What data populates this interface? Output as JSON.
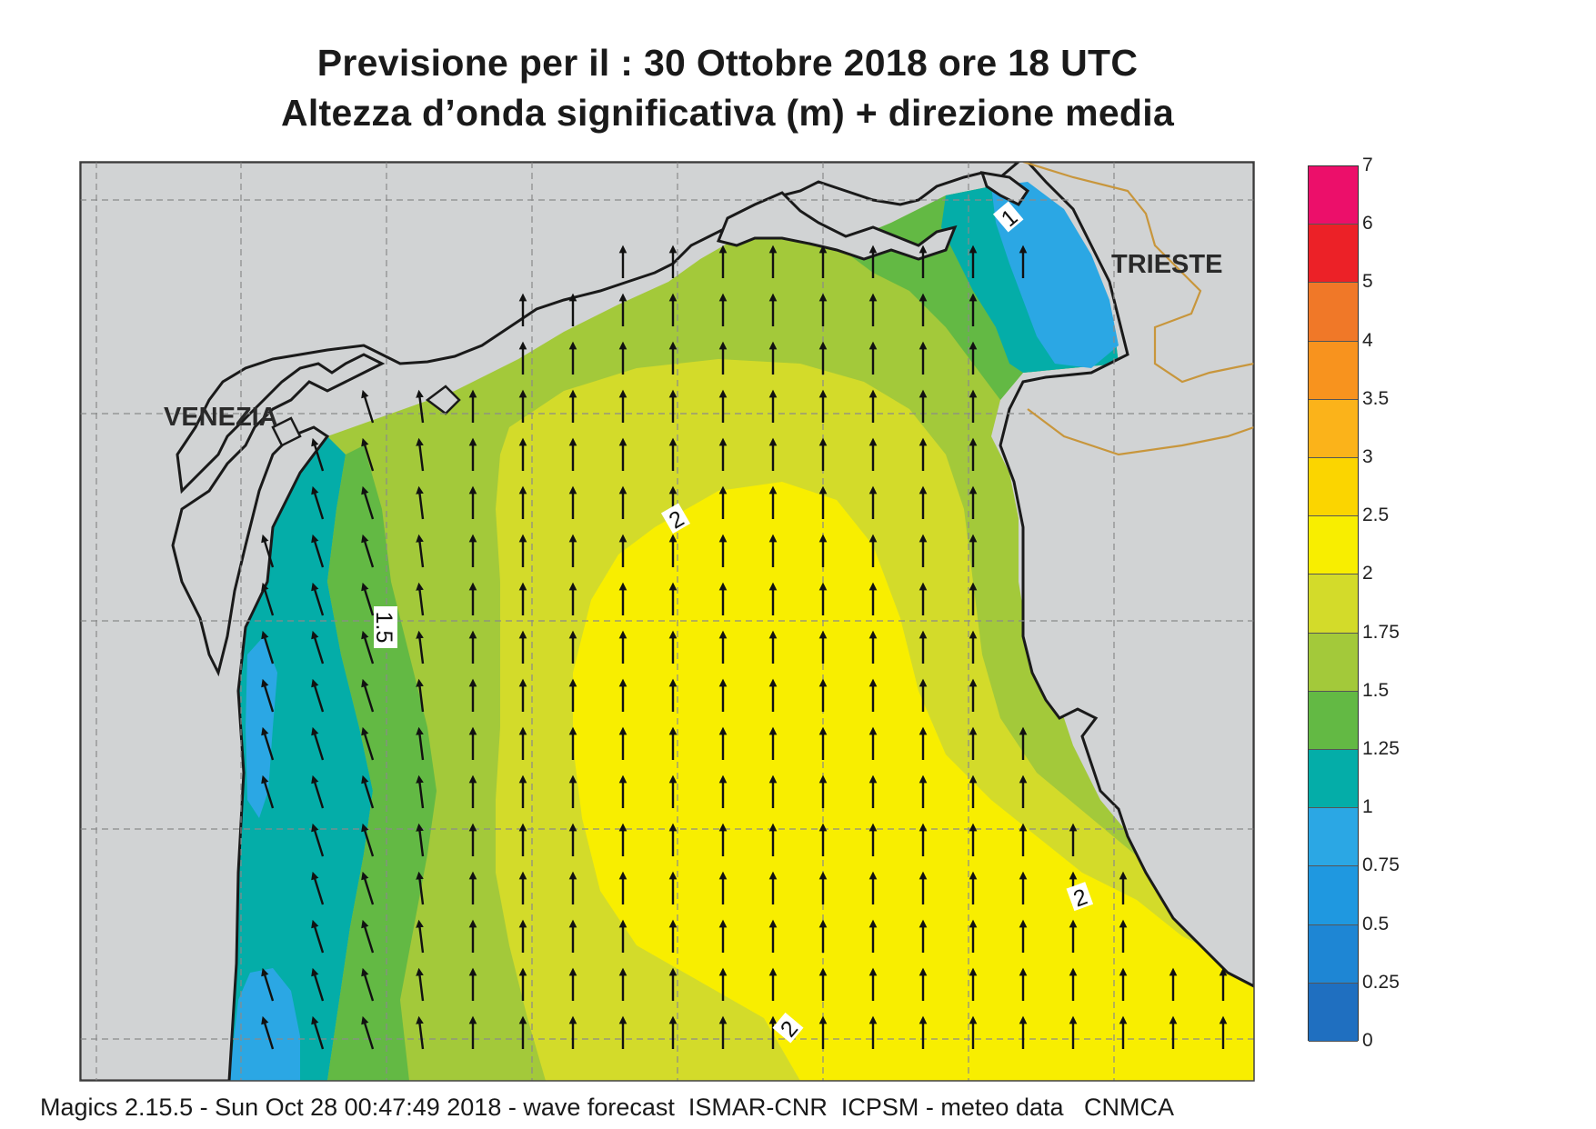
{
  "title": {
    "line1": "Previsione per il  :  30  Ottobre  2018   ore 18 UTC",
    "line2": "Altezza d’onda significativa (m) + direzione media"
  },
  "map": {
    "cities": [
      {
        "id": "venezia",
        "name": "VENEZIA"
      },
      {
        "id": "trieste",
        "name": "TRIESTE"
      }
    ],
    "contour_labels": [
      "1",
      "1.5",
      "2",
      "2",
      "2"
    ],
    "arrow_direction": "north",
    "colors": {
      "land": "#d1d3d4",
      "coast": "#1a1a1a",
      "border": "#c8963c",
      "arrows": "#111111"
    }
  },
  "legend": {
    "levels": [
      "0",
      "0.25",
      "0.5",
      "0.75",
      "1",
      "1.25",
      "1.5",
      "1.75",
      "2",
      "2.5",
      "3",
      "3.5",
      "4",
      "5",
      "6",
      "7"
    ],
    "colors": [
      "#1f6fc0",
      "#1e86d4",
      "#1f98e0",
      "#2ba7e4",
      "#04ada8",
      "#63b944",
      "#a3c93a",
      "#d3db2a",
      "#f8ee00",
      "#fbd500",
      "#fbb31a",
      "#f8931e",
      "#f07828",
      "#ec2127",
      "#ec0f6a"
    ]
  },
  "footer": "Magics 2.15.5 - Sun Oct 28 00:47:49 2018 - wave forecast  ISMAR-CNR  ICPSM - meteo data   CNMCA"
}
